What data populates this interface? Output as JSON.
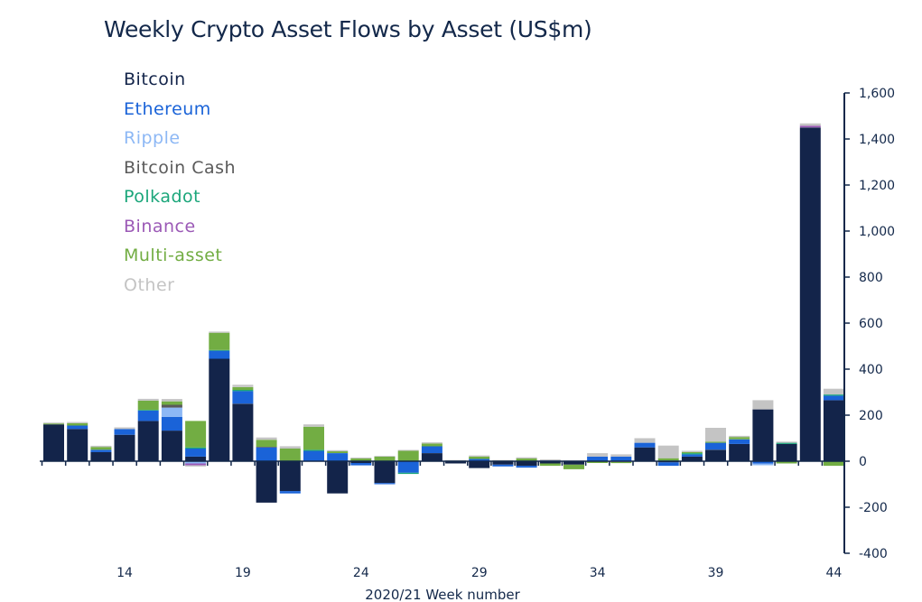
{
  "chart_data": {
    "type": "bar",
    "stacked": true,
    "title": "Weekly Crypto Asset Flows by Asset (US$m)",
    "xlabel": "2020/21 Week number",
    "ylabel": "",
    "ylim": [
      -400,
      1600
    ],
    "yticks": [
      1600,
      1400,
      1200,
      1000,
      800,
      600,
      400,
      200,
      0,
      -200,
      -400
    ],
    "ytick_labels": [
      "1,600",
      "1,400",
      "1,200",
      "1,000",
      "800",
      "600",
      "400",
      "200",
      "0",
      "-200",
      "-400"
    ],
    "y_axis_position": "right",
    "legend_position": "top-left",
    "grid": false,
    "categories": [
      11,
      12,
      13,
      14,
      15,
      16,
      17,
      18,
      19,
      20,
      21,
      22,
      23,
      24,
      25,
      26,
      27,
      28,
      29,
      30,
      31,
      32,
      33,
      34,
      35,
      36,
      37,
      38,
      39,
      40,
      41,
      42,
      43,
      44
    ],
    "xtick_labels": [
      "14",
      "19",
      "24",
      "29",
      "34",
      "39",
      "44"
    ],
    "series": [
      {
        "name": "Bitcoin",
        "color": "#13244a",
        "values": [
          160,
          140,
          40,
          115,
          175,
          133,
          20,
          445,
          250,
          -180,
          -130,
          0,
          -140,
          -8,
          -95,
          0,
          35,
          -10,
          -30,
          -15,
          -20,
          -10,
          -15,
          0,
          0,
          60,
          -5,
          20,
          50,
          75,
          225,
          75,
          1450,
          265
        ]
      },
      {
        "name": "Ethereum",
        "color": "#1a63d8",
        "values": [
          0,
          15,
          10,
          25,
          45,
          60,
          35,
          35,
          55,
          60,
          -10,
          45,
          35,
          -10,
          -5,
          -50,
          30,
          0,
          10,
          -8,
          -8,
          3,
          0,
          20,
          20,
          20,
          -15,
          10,
          30,
          20,
          -10,
          0,
          0,
          20
        ]
      },
      {
        "name": "Ripple",
        "color": "#8db8f5",
        "values": [
          0,
          0,
          0,
          0,
          0,
          40,
          -10,
          0,
          0,
          0,
          0,
          0,
          0,
          0,
          0,
          0,
          0,
          0,
          0,
          0,
          0,
          0,
          0,
          0,
          0,
          0,
          0,
          0,
          0,
          0,
          -8,
          0,
          0,
          0
        ]
      },
      {
        "name": "Bitcoin Cash",
        "color": "#5a5a5a",
        "values": [
          0,
          0,
          0,
          0,
          0,
          12,
          0,
          0,
          0,
          3,
          0,
          0,
          0,
          0,
          0,
          0,
          0,
          0,
          0,
          0,
          0,
          0,
          0,
          0,
          0,
          0,
          0,
          0,
          0,
          0,
          0,
          0,
          0,
          0
        ]
      },
      {
        "name": "Polkadot",
        "color": "#1aa67a",
        "values": [
          0,
          0,
          0,
          0,
          3,
          0,
          5,
          3,
          5,
          0,
          0,
          5,
          0,
          0,
          0,
          -5,
          0,
          0,
          0,
          0,
          0,
          0,
          0,
          0,
          0,
          0,
          3,
          5,
          0,
          0,
          0,
          5,
          0,
          5
        ]
      },
      {
        "name": "Binance",
        "color": "#9b59b6",
        "values": [
          0,
          0,
          0,
          0,
          0,
          0,
          -8,
          0,
          0,
          0,
          0,
          0,
          0,
          0,
          0,
          0,
          0,
          0,
          0,
          0,
          0,
          0,
          0,
          0,
          -3,
          0,
          0,
          0,
          0,
          0,
          0,
          0,
          8,
          0
        ]
      },
      {
        "name": "Multi-asset",
        "color": "#72ad43",
        "values": [
          4,
          10,
          12,
          0,
          40,
          15,
          115,
          75,
          12,
          30,
          55,
          100,
          8,
          12,
          20,
          45,
          12,
          0,
          10,
          0,
          12,
          -10,
          -20,
          -8,
          -5,
          0,
          10,
          5,
          5,
          10,
          0,
          -10,
          0,
          -20
        ]
      },
      {
        "name": "Other",
        "color": "#c4c4c4",
        "values": [
          4,
          5,
          5,
          7,
          8,
          10,
          -5,
          5,
          10,
          10,
          10,
          10,
          5,
          4,
          3,
          4,
          5,
          5,
          5,
          5,
          5,
          5,
          3,
          15,
          10,
          20,
          55,
          5,
          60,
          5,
          40,
          5,
          10,
          25
        ]
      }
    ]
  }
}
